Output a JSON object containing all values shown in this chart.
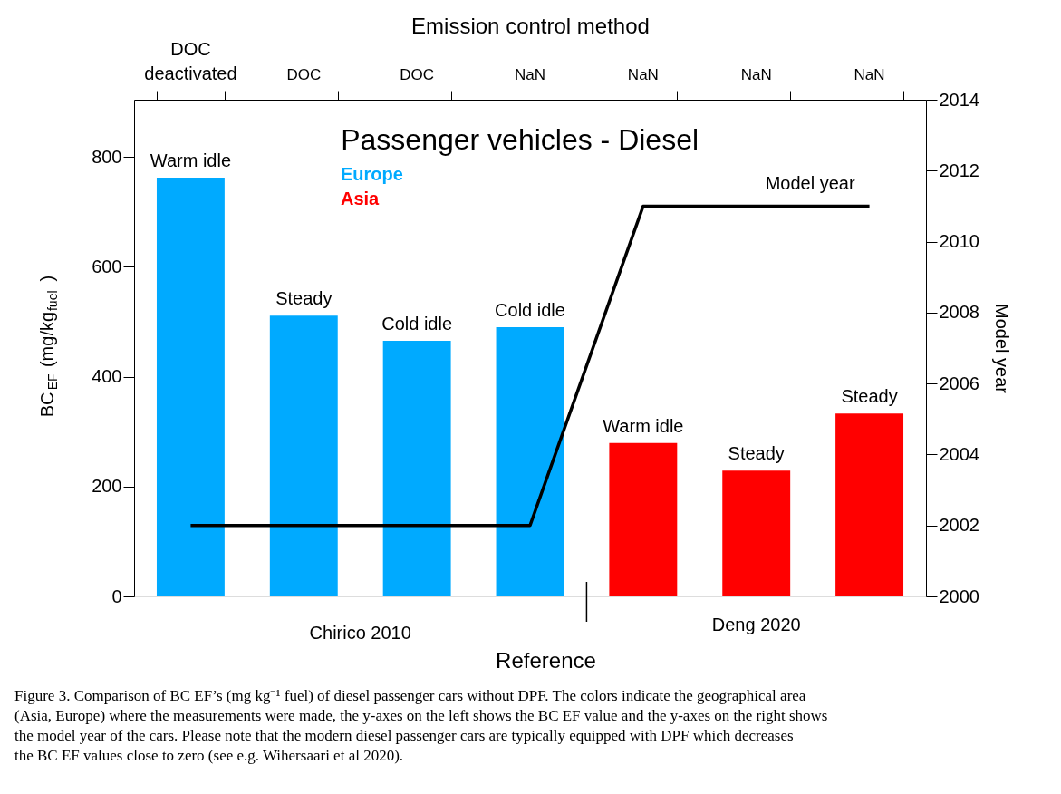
{
  "chart_data": {
    "type": "bar",
    "title": "Passenger vehicles - Diesel",
    "categories": [
      "DOC deactivated",
      "DOC",
      "DOC",
      "NaN",
      "NaN",
      "NaN",
      "NaN"
    ],
    "x2label": "Emission control method",
    "xlabel": "Reference",
    "ylabel": "BC$_{EF}$ (mg/kg$_{fuel}$)",
    "y2label": "Model year",
    "ylim": [
      0,
      904
    ],
    "yticks": [
      0,
      200,
      400,
      600,
      800
    ],
    "y2lim": [
      2000,
      2014
    ],
    "y2ticks": [
      2000,
      2002,
      2004,
      2006,
      2008,
      2010,
      2012,
      2014
    ],
    "series": [
      {
        "name": "Europe",
        "color": "#00aaff",
        "values": [
          762,
          511,
          465,
          490,
          null,
          null,
          null
        ],
        "value_labels": [
          "Warm idle",
          "Steady",
          "Cold idle",
          "Cold idle",
          null,
          null,
          null
        ]
      },
      {
        "name": "Asia",
        "color": "#ff0000",
        "values": [
          null,
          null,
          null,
          null,
          279,
          229,
          333
        ],
        "value_labels": [
          null,
          null,
          null,
          null,
          "Warm idle",
          "Steady",
          "Steady"
        ]
      },
      {
        "name": "Model year",
        "type": "line",
        "axis": "y2",
        "color": "#000000",
        "values": [
          2002,
          2002,
          2002,
          2002,
          2011,
          2011,
          2011
        ]
      }
    ],
    "legend": "top",
    "grid": false,
    "annotations": [
      "Chirico 2010",
      "Deng 2020",
      "Figure 3. Comparison of BC EF’s (mg kg⁻¹ fuel) of diesel passenger cars without DPF. The colors indicate the geographical area (Asia, Europe) where the measurements were made, the y-axes on the left shows the BC EF value and the y-axes on the right shows the model year of the cars. Please note that the modern diesel passenger cars are typically equipped with DPF which decreases the BC EF values close to zero (see e.g. Wihersaari et al 2020)."
    ]
  }
}
